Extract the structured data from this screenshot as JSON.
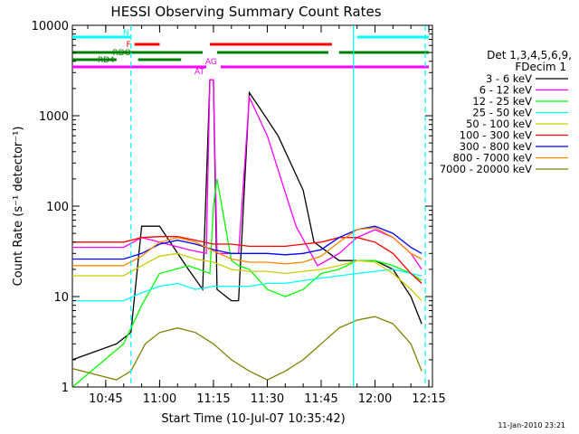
{
  "chart_data": {
    "type": "line",
    "title": "HESSI Observing Summary Count Rates",
    "xlabel": "Start Time (10-Jul-07 10:35:42)",
    "ylabel": "Count Rate (s⁻¹ detector⁻¹)",
    "y_scale": "log",
    "ylim": [
      1,
      10000
    ],
    "xlim": [
      "10:35:42",
      "12:16:00"
    ],
    "grid": false,
    "x_ticks": [
      "10:45",
      "11:00",
      "11:15",
      "11:30",
      "11:45",
      "12:00",
      "12:15"
    ],
    "y_ticks": [
      "1",
      "10",
      "100",
      "1000",
      "10000"
    ],
    "legend": {
      "placement": "right",
      "title_line1": "Det 1,3,4,5,6,9,",
      "title_line2": "FDecim 1"
    },
    "series": [
      {
        "name": "3 - 6 keV",
        "color": "#000000",
        "x": [
          "10:35:42",
          "10:48",
          "10:52",
          "10:55",
          "11:00",
          "11:08",
          "11:12",
          "11:14",
          "11:15",
          "11:16",
          "11:20",
          "11:22",
          "11:25",
          "11:28",
          "11:33",
          "11:40",
          "11:43",
          "11:50",
          "11:55",
          "12:00",
          "12:05",
          "12:10",
          "12:13"
        ],
        "values": [
          2,
          3,
          4,
          60,
          60,
          20,
          12,
          2500,
          2500,
          12,
          9,
          9,
          1800,
          1200,
          600,
          150,
          40,
          25,
          25,
          25,
          20,
          10,
          5
        ]
      },
      {
        "name": "6 - 12 keV",
        "color": "#ff00ff",
        "x": [
          "10:35:42",
          "10:50",
          "10:55",
          "11:00",
          "11:08",
          "11:13",
          "11:14",
          "11:15",
          "11:16",
          "11:20",
          "11:22",
          "11:25",
          "11:30",
          "11:38",
          "11:44",
          "11:50",
          "11:55",
          "12:00",
          "12:05",
          "12:10",
          "12:13"
        ],
        "values": [
          35,
          35,
          45,
          40,
          33,
          30,
          2500,
          2500,
          30,
          30,
          30,
          1600,
          600,
          60,
          22,
          30,
          45,
          55,
          45,
          30,
          20
        ]
      },
      {
        "name": "12 - 25 keV",
        "color": "#00ff00",
        "x": [
          "10:35:42",
          "10:50",
          "10:55",
          "11:00",
          "11:08",
          "11:14",
          "11:15",
          "11:16",
          "11:20",
          "11:22",
          "11:25",
          "11:30",
          "11:35",
          "11:40",
          "11:45",
          "11:50",
          "11:55",
          "12:00",
          "12:05",
          "12:10",
          "12:13"
        ],
        "values": [
          1,
          3,
          8,
          18,
          22,
          18,
          100,
          200,
          25,
          22,
          20,
          12,
          10,
          12,
          18,
          20,
          25,
          25,
          22,
          18,
          15
        ]
      },
      {
        "name": "25 - 50 keV",
        "color": "#00ffff",
        "x": [
          "10:35:42",
          "10:50",
          "10:55",
          "11:00",
          "11:05",
          "11:10",
          "11:15",
          "11:20",
          "11:25",
          "11:30",
          "11:35",
          "11:40",
          "11:45",
          "11:50",
          "11:55",
          "12:00",
          "12:05",
          "12:10",
          "12:13"
        ],
        "values": [
          9,
          9,
          11,
          13,
          14,
          12,
          13,
          13,
          13,
          14,
          14,
          15,
          16,
          17,
          18,
          19,
          20,
          18,
          17
        ]
      },
      {
        "name": "50 - 100 keV",
        "color": "#cccc00",
        "x": [
          "10:35:42",
          "10:50",
          "10:55",
          "11:00",
          "11:05",
          "11:10",
          "11:15",
          "11:20",
          "11:25",
          "11:30",
          "11:35",
          "11:40",
          "11:45",
          "11:50",
          "11:55",
          "12:00",
          "12:05",
          "12:10",
          "12:13"
        ],
        "values": [
          17,
          17,
          22,
          28,
          30,
          26,
          24,
          20,
          19,
          19,
          18,
          19,
          20,
          22,
          25,
          24,
          18,
          12,
          9
        ]
      },
      {
        "name": "100 - 300 keV",
        "color": "#ff0000",
        "x": [
          "10:35:42",
          "10:50",
          "10:55",
          "11:00",
          "11:05",
          "11:10",
          "11:15",
          "11:20",
          "11:25",
          "11:30",
          "11:35",
          "11:40",
          "11:45",
          "11:50",
          "11:55",
          "12:00",
          "12:05",
          "12:10",
          "12:13"
        ],
        "values": [
          40,
          40,
          45,
          46,
          46,
          42,
          38,
          38,
          36,
          36,
          36,
          38,
          40,
          45,
          45,
          40,
          30,
          18,
          14
        ]
      },
      {
        "name": "300 - 800 keV",
        "color": "#0000ff",
        "x": [
          "10:35:42",
          "10:50",
          "10:55",
          "11:00",
          "11:05",
          "11:10",
          "11:15",
          "11:20",
          "11:25",
          "11:30",
          "11:35",
          "11:40",
          "11:45",
          "11:50",
          "11:55",
          "12:00",
          "12:05",
          "12:10",
          "12:13"
        ],
        "values": [
          26,
          26,
          30,
          38,
          42,
          38,
          33,
          30,
          30,
          30,
          29,
          30,
          33,
          45,
          55,
          60,
          50,
          35,
          30
        ]
      },
      {
        "name": "800 - 7000 keV",
        "color": "#ff8800",
        "x": [
          "10:35:42",
          "10:50",
          "10:55",
          "11:00",
          "11:05",
          "11:10",
          "11:15",
          "11:20",
          "11:25",
          "11:30",
          "11:35",
          "11:40",
          "11:45",
          "11:50",
          "11:55",
          "12:00",
          "12:05",
          "12:10",
          "12:13"
        ],
        "values": [
          22,
          22,
          28,
          40,
          45,
          40,
          32,
          26,
          24,
          24,
          23,
          24,
          28,
          40,
          55,
          58,
          45,
          30,
          26
        ]
      },
      {
        "name": "7000 - 20000 keV",
        "color": "#808000",
        "x": [
          "10:35:42",
          "10:48",
          "10:52",
          "10:56",
          "11:00",
          "11:05",
          "11:10",
          "11:15",
          "11:20",
          "11:25",
          "11:30",
          "11:35",
          "11:40",
          "11:45",
          "11:50",
          "11:55",
          "12:00",
          "12:05",
          "12:10",
          "12:13"
        ],
        "values": [
          1.6,
          1.2,
          1.5,
          3,
          4,
          4.5,
          4,
          3,
          2,
          1.5,
          1.2,
          1.5,
          2,
          3,
          4.5,
          5.5,
          6,
          5,
          3,
          1.5
        ]
      }
    ],
    "flag_bars": [
      {
        "label": "N",
        "color": "#00ffff",
        "segments": [
          [
            "10:35:42",
            "10:52"
          ],
          [
            "11:55",
            "12:15"
          ]
        ]
      },
      {
        "label": "F",
        "color": "#ff0000",
        "segments": [
          [
            "10:53",
            "11:00"
          ],
          [
            "11:14",
            "11:48"
          ]
        ]
      },
      {
        "label": "RDO",
        "color": "#008000",
        "segments": [
          [
            "10:35:42",
            "11:12"
          ],
          [
            "11:16",
            "11:47"
          ],
          [
            "11:50",
            "12:15"
          ]
        ]
      },
      {
        "label": "RD4",
        "color": "#008000",
        "segments": [
          [
            "10:35:42",
            "10:48"
          ],
          [
            "10:54",
            "11:06"
          ]
        ]
      },
      {
        "label": "AT",
        "color": "#ff00ff",
        "segments": [
          [
            "10:35:42",
            "11:13"
          ]
        ]
      },
      {
        "label": "AG",
        "color": "#ff00ff",
        "segments": [
          [
            "11:17",
            "12:15"
          ]
        ]
      }
    ],
    "vertical_markers": [
      {
        "time": "10:52",
        "color": "#00ffff",
        "style": "dashed"
      },
      {
        "time": "11:54",
        "color": "#00ffff",
        "style": "solid"
      },
      {
        "time": "12:14",
        "color": "#00ffff",
        "style": "dashed"
      }
    ],
    "footer_date": "11-Jan-2010 23:21"
  }
}
